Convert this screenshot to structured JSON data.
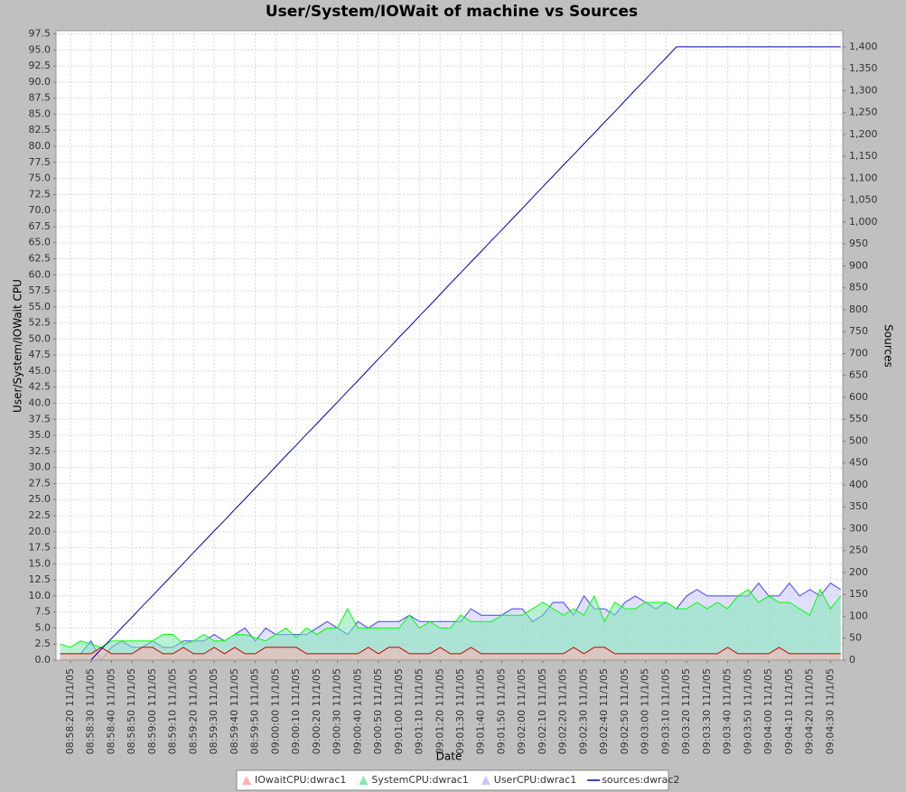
{
  "chart_data": {
    "type": "line",
    "title": "User/System/IOWait of machine vs Sources",
    "xlabel": "Date",
    "ylabel": "User/System/IOWait CPU",
    "y2label": "Sources",
    "x": [
      "08:58:15",
      "08:58:20",
      "08:58:25",
      "08:58:30",
      "08:58:35",
      "08:58:40",
      "08:58:45",
      "08:58:50",
      "08:58:55",
      "08:59:00",
      "08:59:05",
      "08:59:10",
      "08:59:15",
      "08:59:20",
      "08:59:25",
      "08:59:30",
      "08:59:35",
      "08:59:40",
      "08:59:45",
      "08:59:50",
      "08:59:55",
      "09:00:00",
      "09:00:05",
      "09:00:10",
      "09:00:15",
      "09:00:20",
      "09:00:25",
      "09:00:30",
      "09:00:35",
      "09:00:40",
      "09:00:45",
      "09:00:50",
      "09:00:55",
      "09:01:00",
      "09:01:05",
      "09:01:10",
      "09:01:15",
      "09:01:20",
      "09:01:25",
      "09:01:30",
      "09:01:35",
      "09:01:40",
      "09:01:45",
      "09:01:50",
      "09:01:55",
      "09:02:00",
      "09:02:05",
      "09:02:10",
      "09:02:15",
      "09:02:20",
      "09:02:25",
      "09:02:30",
      "09:02:35",
      "09:02:40",
      "09:02:45",
      "09:02:50",
      "09:02:55",
      "09:03:00",
      "09:03:05",
      "09:03:10",
      "09:03:15",
      "09:03:20",
      "09:03:25",
      "09:03:30",
      "09:03:35",
      "09:03:40",
      "09:03:45",
      "09:03:50",
      "09:03:55",
      "09:04:00",
      "09:04:05",
      "09:04:10",
      "09:04:15",
      "09:04:20",
      "09:04:25",
      "09:04:30",
      "09:04:35"
    ],
    "xlim": [
      "08:58:13",
      "09:04:36"
    ],
    "xticks": [
      "08:58:20 11/1/05",
      "08:58:30 11/1/05",
      "08:58:40 11/1/05",
      "08:58:50 11/1/05",
      "08:59:00 11/1/05",
      "08:59:10 11/1/05",
      "08:59:20 11/1/05",
      "08:59:30 11/1/05",
      "08:59:40 11/1/05",
      "08:59:50 11/1/05",
      "09:00:00 11/1/05",
      "09:00:10 11/1/05",
      "09:00:20 11/1/05",
      "09:00:30 11/1/05",
      "09:00:40 11/1/05",
      "09:00:50 11/1/05",
      "09:01:00 11/1/05",
      "09:01:10 11/1/05",
      "09:01:20 11/1/05",
      "09:01:30 11/1/05",
      "09:01:40 11/1/05",
      "09:01:50 11/1/05",
      "09:02:00 11/1/05",
      "09:02:10 11/1/05",
      "09:02:20 11/1/05",
      "09:02:30 11/1/05",
      "09:02:40 11/1/05",
      "09:02:50 11/1/05",
      "09:03:00 11/1/05",
      "09:03:10 11/1/05",
      "09:03:20 11/1/05",
      "09:03:30 11/1/05",
      "09:03:40 11/1/05",
      "09:03:50 11/1/05",
      "09:04:00 11/1/05",
      "09:04:10 11/1/05",
      "09:04:20 11/1/05",
      "09:04:30 11/1/05"
    ],
    "ylim": [
      0,
      98
    ],
    "yticks": [
      {
        "value": 0,
        "label": "0.0"
      },
      2.5,
      {
        "value": 5,
        "label": "5.0"
      },
      7.5,
      {
        "value": 10,
        "label": "10.0"
      },
      12.5,
      {
        "value": 15,
        "label": "15.0"
      },
      17.5,
      {
        "value": 20,
        "label": "20.0"
      },
      22.5,
      {
        "value": 25,
        "label": "25.0"
      },
      27.5,
      {
        "value": 30,
        "label": "30.0"
      },
      32.5,
      {
        "value": 35,
        "label": "35.0"
      },
      37.5,
      {
        "value": 40,
        "label": "40.0"
      },
      42.5,
      {
        "value": 45,
        "label": "45.0"
      },
      47.5,
      {
        "value": 50,
        "label": "50.0"
      },
      52.5,
      {
        "value": 55,
        "label": "55.0"
      },
      57.5,
      {
        "value": 60,
        "label": "60.0"
      },
      62.5,
      {
        "value": 65,
        "label": "65.0"
      },
      67.5,
      {
        "value": 70,
        "label": "70.0"
      },
      72.5,
      {
        "value": 75,
        "label": "75.0"
      },
      77.5,
      {
        "value": 80,
        "label": "80.0"
      },
      82.5,
      {
        "value": 85,
        "label": "85.0"
      },
      87.5,
      {
        "value": 90,
        "label": "90.0"
      },
      92.5,
      {
        "value": 95,
        "label": "95.0"
      },
      97.5
    ],
    "y2lim": [
      0,
      1437
    ],
    "y2ticks": [
      0,
      50,
      100,
      150,
      200,
      250,
      300,
      350,
      400,
      450,
      500,
      550,
      600,
      650,
      700,
      750,
      800,
      850,
      900,
      950,
      {
        "value": 1000,
        "label": "1,000"
      },
      {
        "value": 1050,
        "label": "1,050"
      },
      {
        "value": 1100,
        "label": "1,100"
      },
      {
        "value": 1150,
        "label": "1,150"
      },
      {
        "value": 1200,
        "label": "1,200"
      },
      {
        "value": 1250,
        "label": "1,250"
      },
      {
        "value": 1300,
        "label": "1,300"
      },
      {
        "value": 1350,
        "label": "1,350"
      },
      {
        "value": 1400,
        "label": "1,400"
      }
    ],
    "grid": true,
    "legend": "bottom",
    "series": [
      {
        "name": "UserCPU:dwrac1",
        "type": "area",
        "color": "#4040ff",
        "fill": "#c8c8ff",
        "values": [
          1,
          1,
          1,
          3,
          0,
          2,
          3,
          2,
          2,
          3,
          2,
          2,
          3,
          3,
          3,
          4,
          3,
          4,
          5,
          3,
          5,
          4,
          4,
          4,
          4,
          5,
          6,
          5,
          4,
          6,
          5,
          6,
          6,
          6,
          7,
          6,
          6,
          6,
          6,
          6,
          8,
          7,
          7,
          7,
          8,
          8,
          6,
          7,
          9,
          9,
          7,
          10,
          8,
          8,
          7,
          9,
          10,
          9,
          8,
          9,
          8,
          10,
          11,
          10,
          10,
          10,
          10,
          10,
          12,
          10,
          10,
          12,
          10,
          11,
          10,
          12,
          11
        ]
      },
      {
        "name": "SystemCPU:dwrac1",
        "type": "area",
        "color": "#00ff00",
        "fill": "#80e8b0",
        "values": [
          2.5,
          2,
          3,
          2.5,
          2,
          3,
          3,
          3,
          3,
          3,
          4,
          4,
          2.5,
          3,
          4,
          3,
          3,
          4,
          4,
          3.5,
          3,
          4,
          5,
          3.5,
          5,
          4,
          5,
          5,
          8,
          5,
          5,
          5,
          5,
          5,
          7,
          5,
          6,
          5,
          5,
          7,
          6,
          6,
          6,
          7,
          7,
          7,
          8,
          9,
          8,
          7,
          8,
          7,
          10,
          6,
          9,
          8,
          8,
          9,
          9,
          9,
          8,
          8,
          9,
          8,
          9,
          8,
          10,
          11,
          9,
          10,
          9,
          9,
          8,
          7,
          11,
          8,
          10
        ]
      },
      {
        "name": "IOwaitCPU:dwrac1",
        "type": "area",
        "color": "#cc0000",
        "fill": "#ffb0b0",
        "values": [
          1,
          1,
          1,
          1,
          2,
          1,
          1,
          1,
          2,
          2,
          1,
          1,
          2,
          1,
          1,
          2,
          1,
          2,
          1,
          1,
          2,
          2,
          2,
          2,
          1,
          1,
          1,
          1,
          1,
          1,
          2,
          1,
          2,
          2,
          1,
          1,
          1,
          2,
          1,
          1,
          2,
          1,
          1,
          1,
          1,
          1,
          1,
          1,
          1,
          1,
          2,
          1,
          2,
          2,
          1,
          1,
          1,
          1,
          1,
          1,
          1,
          1,
          1,
          1,
          1,
          2,
          1,
          1,
          1,
          1,
          2,
          1,
          1,
          1,
          1,
          1,
          1
        ]
      },
      {
        "name": "sources:dwrac2",
        "type": "line",
        "axis": "y2",
        "color": "#0000aa",
        "values": [
          0,
          0,
          0,
          0,
          25,
          49,
          74,
          98,
          123,
          147,
          172,
          196,
          221,
          246,
          270,
          295,
          319,
          344,
          368,
          393,
          417,
          442,
          467,
          491,
          516,
          540,
          565,
          589,
          614,
          638,
          663,
          688,
          712,
          737,
          761,
          786,
          810,
          835,
          860,
          884,
          909,
          933,
          958,
          982,
          1007,
          1031,
          1056,
          1081,
          1105,
          1130,
          1154,
          1179,
          1203,
          1228,
          1252,
          1277,
          1302,
          1326,
          1351,
          1375,
          1400,
          1400,
          1400,
          1400,
          1400,
          1400,
          1400,
          1400,
          1400,
          1400,
          1400,
          1400,
          1400,
          1400,
          1400,
          1400,
          1400
        ]
      }
    ],
    "legend_order": [
      2,
      1,
      0,
      3
    ]
  }
}
